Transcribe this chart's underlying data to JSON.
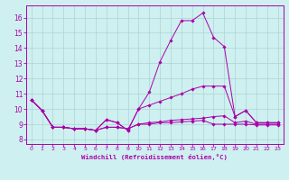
{
  "title": "",
  "xlabel": "Windchill (Refroidissement éolien,°C)",
  "ylabel": "",
  "background_color": "#cff0f0",
  "grid_color": "#aad4d4",
  "line_color": "#aa00aa",
  "spine_color": "#7700aa",
  "xlim": [
    -0.5,
    23.5
  ],
  "ylim": [
    7.7,
    16.8
  ],
  "yticks": [
    8,
    9,
    10,
    11,
    12,
    13,
    14,
    15,
    16
  ],
  "xticks": [
    0,
    1,
    2,
    3,
    4,
    5,
    6,
    7,
    8,
    9,
    10,
    11,
    12,
    13,
    14,
    15,
    16,
    17,
    18,
    19,
    20,
    21,
    22,
    23
  ],
  "series": [
    [
      10.6,
      9.9,
      8.8,
      8.8,
      8.7,
      8.7,
      8.6,
      9.3,
      9.1,
      8.6,
      10.0,
      11.1,
      13.1,
      14.5,
      15.8,
      15.8,
      16.3,
      14.7,
      14.1,
      9.5,
      9.9,
      9.1,
      9.1,
      9.1
    ],
    [
      10.6,
      9.9,
      8.8,
      8.8,
      8.7,
      8.7,
      8.6,
      9.3,
      9.1,
      8.6,
      10.0,
      10.25,
      10.5,
      10.75,
      11.0,
      11.3,
      11.5,
      11.5,
      11.5,
      9.5,
      9.9,
      9.1,
      9.1,
      9.1
    ],
    [
      10.6,
      9.9,
      8.8,
      8.8,
      8.7,
      8.7,
      8.6,
      8.8,
      8.8,
      8.7,
      9.0,
      9.1,
      9.15,
      9.25,
      9.3,
      9.35,
      9.4,
      9.5,
      9.55,
      9.1,
      9.2,
      9.0,
      9.0,
      9.0
    ],
    [
      10.6,
      9.9,
      8.8,
      8.8,
      8.7,
      8.7,
      8.6,
      8.8,
      8.8,
      8.7,
      9.0,
      9.0,
      9.1,
      9.1,
      9.15,
      9.2,
      9.25,
      9.0,
      9.0,
      9.0,
      9.0,
      8.95,
      8.95,
      8.95
    ]
  ]
}
